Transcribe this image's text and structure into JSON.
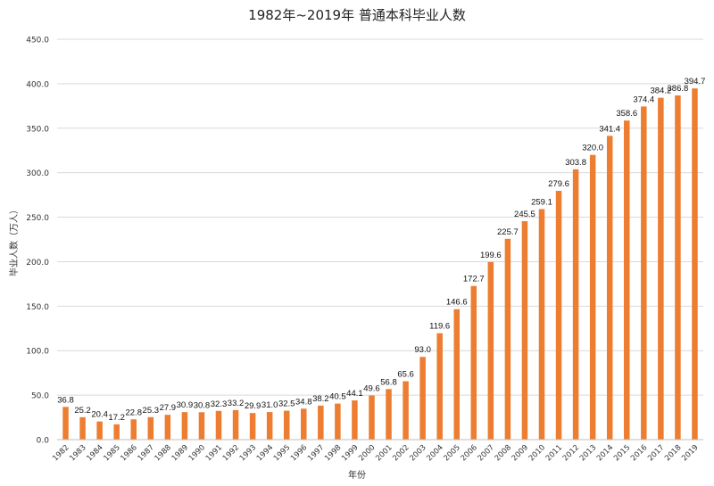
{
  "chart_data": {
    "type": "bar",
    "title": "1982年~2019年 普通本科毕业人数",
    "xlabel": "年份",
    "ylabel": "毕业人数（万人）",
    "ylim": [
      0,
      450
    ],
    "yticks": [
      "0.0",
      "50.0",
      "100.0",
      "150.0",
      "200.0",
      "250.0",
      "300.0",
      "350.0",
      "400.0",
      "450.0"
    ],
    "grid": true,
    "legend": "none",
    "bar_color": "#ED7D31",
    "categories": [
      "1982",
      "1983",
      "1984",
      "1985",
      "1986",
      "1987",
      "1988",
      "1989",
      "1990",
      "1991",
      "1992",
      "1993",
      "1994",
      "1995",
      "1996",
      "1997",
      "1998",
      "1999",
      "2000",
      "2001",
      "2002",
      "2003",
      "2004",
      "2005",
      "2006",
      "2007",
      "2008",
      "2009",
      "2010",
      "2011",
      "2012",
      "2013",
      "2014",
      "2015",
      "2016",
      "2017",
      "2018",
      "2019"
    ],
    "values": [
      36.8,
      25.2,
      20.4,
      17.2,
      22.8,
      25.3,
      27.9,
      30.9,
      30.8,
      32.3,
      33.2,
      29.9,
      31.0,
      32.5,
      34.8,
      38.2,
      40.5,
      44.1,
      49.6,
      56.8,
      65.6,
      93.0,
      119.6,
      146.6,
      172.7,
      199.6,
      225.7,
      245.5,
      259.1,
      279.6,
      303.8,
      320.0,
      341.4,
      358.6,
      374.4,
      384.2,
      386.8,
      394.7
    ],
    "data_labels": [
      "36.8",
      "25.2",
      "20.4",
      "17.2",
      "22.8",
      "25.3",
      "27.9",
      "30.9",
      "30.8",
      "32.3",
      "33.2",
      "29.9",
      "31.0",
      "32.5",
      "34.8",
      "38.2",
      "40.5",
      "44.1",
      "49.6",
      "56.8",
      "65.6",
      "93.0",
      "119.6",
      "146.6",
      "172.7",
      "199.6",
      "225.7",
      "245.5",
      "259.1",
      "279.6",
      "303.8",
      "320.0",
      "341.4",
      "358.6",
      "374.4",
      "384.2",
      "386.8",
      "394.7"
    ]
  }
}
